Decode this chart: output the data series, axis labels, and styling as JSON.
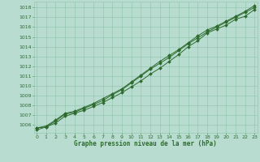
{
  "x": [
    0,
    1,
    2,
    3,
    4,
    5,
    6,
    7,
    8,
    9,
    10,
    11,
    12,
    13,
    14,
    15,
    16,
    17,
    18,
    19,
    20,
    21,
    22,
    23
  ],
  "series1": [
    1005.5,
    1005.8,
    1006.2,
    1006.9,
    1007.2,
    1007.5,
    1007.9,
    1008.3,
    1008.8,
    1009.3,
    1009.9,
    1010.5,
    1011.2,
    1011.8,
    1012.5,
    1013.2,
    1014.0,
    1014.6,
    1015.4,
    1015.8,
    1016.2,
    1016.8,
    1017.1,
    1017.8
  ],
  "series2": [
    1005.7,
    1005.8,
    1006.4,
    1007.1,
    1007.3,
    1007.7,
    1008.1,
    1008.5,
    1009.1,
    1009.6,
    1010.3,
    1011.0,
    1011.7,
    1012.3,
    1012.9,
    1013.6,
    1014.3,
    1014.9,
    1015.5,
    1016.0,
    1016.5,
    1017.0,
    1017.5,
    1018.0
  ],
  "series3": [
    1005.7,
    1005.9,
    1006.5,
    1007.2,
    1007.4,
    1007.8,
    1008.2,
    1008.7,
    1009.2,
    1009.7,
    1010.4,
    1011.1,
    1011.8,
    1012.5,
    1013.1,
    1013.7,
    1014.4,
    1015.1,
    1015.7,
    1016.1,
    1016.6,
    1017.1,
    1017.6,
    1018.2
  ],
  "line_color": "#2d6a2d",
  "bg_color": "#b8ddd0",
  "grid_color": "#8cc4aa",
  "xlabel": "Graphe pression niveau de la mer (hPa)",
  "xlabel_color": "#2d6a2d",
  "xlim": [
    -0.3,
    23.3
  ],
  "ylim": [
    1005.2,
    1018.6
  ],
  "yticks": [
    1006,
    1007,
    1008,
    1009,
    1010,
    1011,
    1012,
    1013,
    1014,
    1015,
    1016,
    1017,
    1018
  ],
  "xticks": [
    0,
    1,
    2,
    3,
    4,
    5,
    6,
    7,
    8,
    9,
    10,
    11,
    12,
    13,
    14,
    15,
    16,
    17,
    18,
    19,
    20,
    21,
    22,
    23
  ],
  "marker": "D",
  "markersize": 2.0,
  "linewidth": 0.7
}
